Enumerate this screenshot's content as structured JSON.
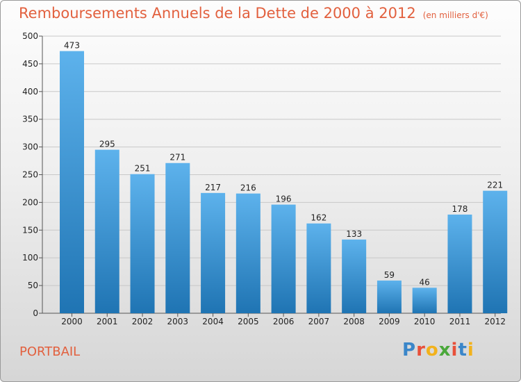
{
  "header": {
    "title": "Remboursements Annuels de la Dette de 2000 à 2012",
    "subtitle": "(en milliers d'€)"
  },
  "footer": {
    "town": "PORTBAIL",
    "logo_letters": [
      "P",
      "r",
      "o",
      "x",
      "i",
      "t",
      "i"
    ],
    "logo_colors": [
      "#3a86c9",
      "#e8503a",
      "#f2b21c",
      "#4aa83a",
      "#e8503a",
      "#3a86c9",
      "#f2b21c"
    ]
  },
  "colors": {
    "bar_light": "#5db2ec",
    "bar_dark": "#1f74b3",
    "grid": "#c8c8c8",
    "text_accent": "#e2603e"
  },
  "chart_data": {
    "type": "bar",
    "categories": [
      "2000",
      "2001",
      "2002",
      "2003",
      "2004",
      "2005",
      "2006",
      "2007",
      "2008",
      "2009",
      "2010",
      "2011",
      "2012"
    ],
    "values": [
      473,
      295,
      251,
      271,
      217,
      216,
      196,
      162,
      133,
      59,
      46,
      178,
      221
    ],
    "title": "Remboursements Annuels de la Dette de 2000 à 2012",
    "xlabel": "",
    "ylabel": "",
    "ylim": [
      0,
      500
    ],
    "yticks": [
      0,
      50,
      100,
      150,
      200,
      250,
      300,
      350,
      400,
      450,
      500
    ],
    "grid": true,
    "data_labels": true
  }
}
